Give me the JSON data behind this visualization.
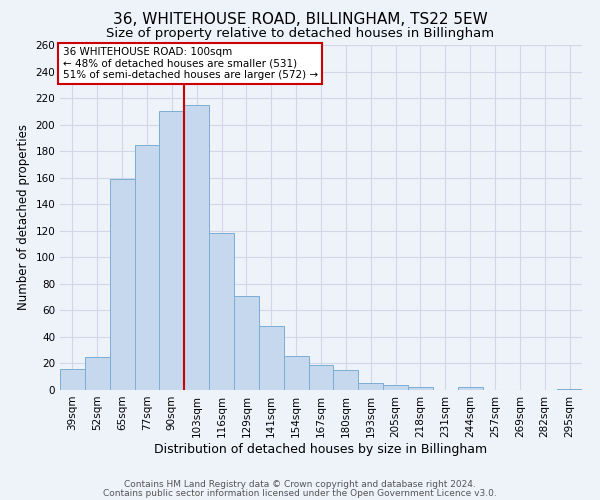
{
  "title": "36, WHITEHOUSE ROAD, BILLINGHAM, TS22 5EW",
  "subtitle": "Size of property relative to detached houses in Billingham",
  "xlabel": "Distribution of detached houses by size in Billingham",
  "ylabel": "Number of detached properties",
  "bar_labels": [
    "39sqm",
    "52sqm",
    "65sqm",
    "77sqm",
    "90sqm",
    "103sqm",
    "116sqm",
    "129sqm",
    "141sqm",
    "154sqm",
    "167sqm",
    "180sqm",
    "193sqm",
    "205sqm",
    "218sqm",
    "231sqm",
    "244sqm",
    "257sqm",
    "269sqm",
    "282sqm",
    "295sqm"
  ],
  "bar_values": [
    16,
    25,
    159,
    185,
    210,
    215,
    118,
    71,
    48,
    26,
    19,
    15,
    5,
    4,
    2,
    0,
    2,
    0,
    0,
    0,
    1
  ],
  "bar_color": "#c5d8ed",
  "bar_edge_color": "#7badd4",
  "property_line_x": 4.5,
  "annotation_title": "36 WHITEHOUSE ROAD: 100sqm",
  "annotation_line1": "← 48% of detached houses are smaller (531)",
  "annotation_line2": "51% of semi-detached houses are larger (572) →",
  "annotation_box_color": "#ffffff",
  "annotation_box_edge_color": "#cc0000",
  "vline_color": "#cc0000",
  "ylim": [
    0,
    260
  ],
  "yticks": [
    0,
    20,
    40,
    60,
    80,
    100,
    120,
    140,
    160,
    180,
    200,
    220,
    240,
    260
  ],
  "footer_line1": "Contains HM Land Registry data © Crown copyright and database right 2024.",
  "footer_line2": "Contains public sector information licensed under the Open Government Licence v3.0.",
  "background_color": "#eef2f9",
  "grid_color": "#d0d8e8",
  "title_fontsize": 11,
  "subtitle_fontsize": 9.5,
  "xlabel_fontsize": 9,
  "ylabel_fontsize": 8.5,
  "tick_fontsize": 7.5,
  "ann_fontsize": 7.5,
  "footer_fontsize": 6.5
}
